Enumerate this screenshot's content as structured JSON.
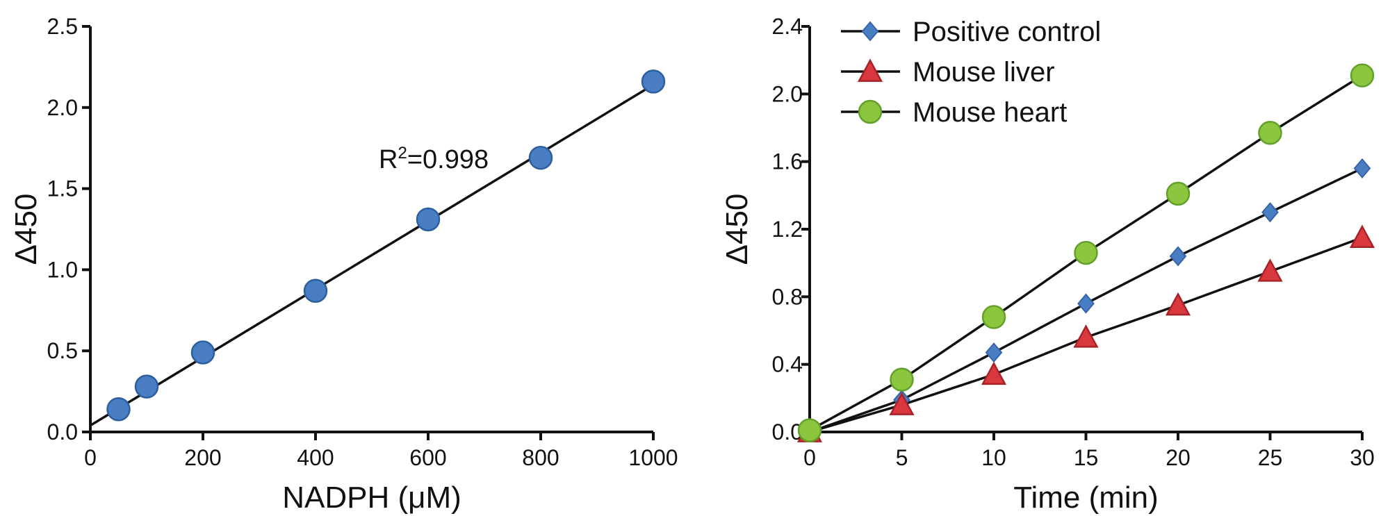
{
  "chart_data": [
    {
      "type": "scatter",
      "xlabel": "NADPH (μM)",
      "ylabel": "Δ450",
      "xlim": [
        0,
        1000
      ],
      "ylim": [
        0,
        2.5
      ],
      "xticks": [
        "0",
        "200",
        "400",
        "600",
        "800",
        "1000"
      ],
      "yticks": [
        "0.0",
        "0.5",
        "1.0",
        "1.5",
        "2.0",
        "2.5"
      ],
      "annotation": {
        "prefix": "R",
        "sup": "2",
        "suffix": "=0.998"
      },
      "series": [
        {
          "marker": "circle",
          "color": "#4a7ec2",
          "points": [
            [
              50,
              0.14
            ],
            [
              100,
              0.28
            ],
            [
              200,
              0.49
            ],
            [
              400,
              0.87
            ],
            [
              600,
              1.31
            ],
            [
              800,
              1.69
            ],
            [
              1000,
              2.16
            ]
          ]
        }
      ],
      "fit_line": {
        "x": [
          0,
          1000
        ],
        "y": [
          0.04,
          2.14
        ]
      },
      "grid": false
    },
    {
      "type": "line",
      "xlabel": "Time (min)",
      "ylabel": "Δ450",
      "xlim": [
        0,
        30
      ],
      "ylim": [
        0,
        2.4
      ],
      "xticks": [
        "0",
        "5",
        "10",
        "15",
        "20",
        "25",
        "30"
      ],
      "yticks": [
        "0.0",
        "0.4",
        "0.8",
        "1.2",
        "1.6",
        "2.0",
        "2.4"
      ],
      "legend_position": "top-left",
      "x": [
        0,
        5,
        10,
        15,
        20,
        25,
        30
      ],
      "series": [
        {
          "name": "Positive control",
          "marker": "diamond",
          "color": "#4a7ec2",
          "stroke": "#3565a8",
          "values": [
            0.0,
            0.19,
            0.47,
            0.76,
            1.04,
            1.3,
            1.56
          ]
        },
        {
          "name": "Mouse liver",
          "marker": "triangle",
          "color": "#d9393e",
          "stroke": "#a82328",
          "values": [
            0.0,
            0.16,
            0.34,
            0.56,
            0.75,
            0.95,
            1.15
          ]
        },
        {
          "name": "Mouse heart",
          "marker": "circle",
          "color": "#8cc63f",
          "stroke": "#62a02a",
          "values": [
            0.01,
            0.31,
            0.68,
            1.06,
            1.41,
            1.77,
            2.11
          ]
        }
      ],
      "grid": false
    }
  ]
}
